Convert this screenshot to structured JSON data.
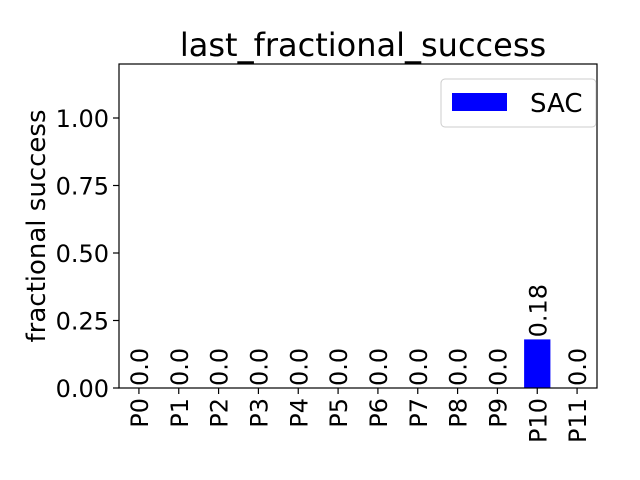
{
  "chart_data": {
    "type": "bar",
    "title": "last_fractional_success",
    "xlabel": "",
    "ylabel": "fractional success",
    "ylim": [
      0,
      1.2
    ],
    "yticks": [
      0.0,
      0.25,
      0.5,
      0.75,
      1.0
    ],
    "ytick_labels": [
      "0.00",
      "0.25",
      "0.50",
      "0.75",
      "1.00"
    ],
    "grid": false,
    "legend_position": "top-right",
    "categories": [
      "P0",
      "P1",
      "P2",
      "P3",
      "P4",
      "P5",
      "P6",
      "P7",
      "P8",
      "P9",
      "P10",
      "P11"
    ],
    "series": [
      {
        "name": "SAC",
        "color": "#0000ff",
        "values": [
          0.0,
          0.0,
          0.0,
          0.0,
          0.0,
          0.0,
          0.0,
          0.0,
          0.0,
          0.0,
          0.18,
          0.0
        ],
        "value_labels": [
          "0.0",
          "0.0",
          "0.0",
          "0.0",
          "0.0",
          "0.0",
          "0.0",
          "0.0",
          "0.0",
          "0.0",
          "0.18",
          "0.0"
        ]
      }
    ]
  }
}
